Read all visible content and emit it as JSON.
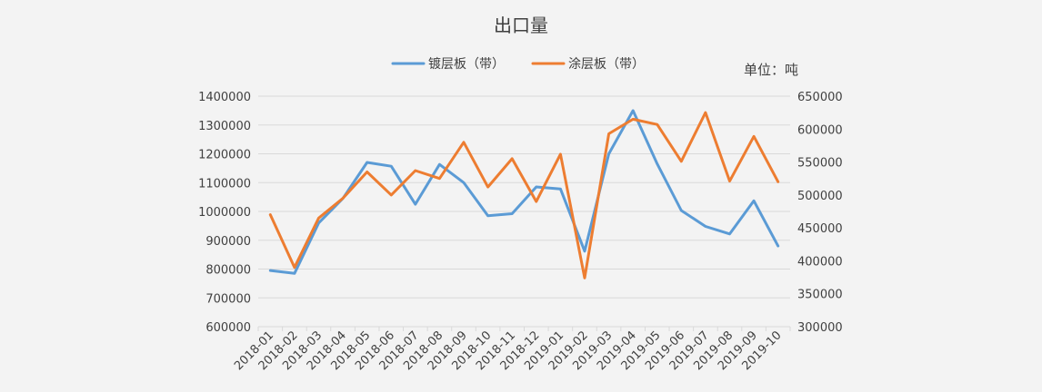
{
  "chart_data": {
    "type": "line",
    "title": "出口量",
    "unit_label": "单位：吨",
    "categories": [
      "2018-01",
      "2018-02",
      "2018-03",
      "2018-04",
      "2018-05",
      "2018-06",
      "2018-07",
      "2018-08",
      "2018-09",
      "2018-10",
      "2018-11",
      "2018-12",
      "2019-01",
      "2019-02",
      "2019-03",
      "2019-04",
      "2019-05",
      "2019-06",
      "2019-07",
      "2019-08",
      "2019-09",
      "2019-10"
    ],
    "y_left": {
      "min": 600000,
      "max": 1400000,
      "step": 100000,
      "ticks": [
        "1400000",
        "1300000",
        "1200000",
        "1100000",
        "1000000",
        "900000",
        "800000",
        "700000",
        "600000"
      ]
    },
    "y_right": {
      "min": 300000,
      "max": 650000,
      "step": 50000,
      "ticks": [
        "650000",
        "600000",
        "550000",
        "500000",
        "450000",
        "400000",
        "350000",
        "300000"
      ]
    },
    "grid": true,
    "legend_position": "top",
    "series": [
      {
        "name": "镀层板（带）",
        "axis": "left",
        "color": "#5b9bd5",
        "values": [
          795000,
          785000,
          960000,
          1045000,
          1170000,
          1157000,
          1025000,
          1163000,
          1100000,
          985000,
          992000,
          1085000,
          1078000,
          862000,
          1200000,
          1350000,
          1165000,
          1003000,
          948000,
          922000,
          1037000,
          880000
        ]
      },
      {
        "name": "涂层板（带）",
        "axis": "right",
        "color": "#ed7d31",
        "values": [
          470000,
          390000,
          465000,
          495000,
          535000,
          500000,
          537000,
          525000,
          580000,
          512000,
          555000,
          490000,
          562000,
          374000,
          593000,
          615000,
          607000,
          551000,
          625000,
          521000,
          589000,
          520000
        ]
      }
    ]
  }
}
